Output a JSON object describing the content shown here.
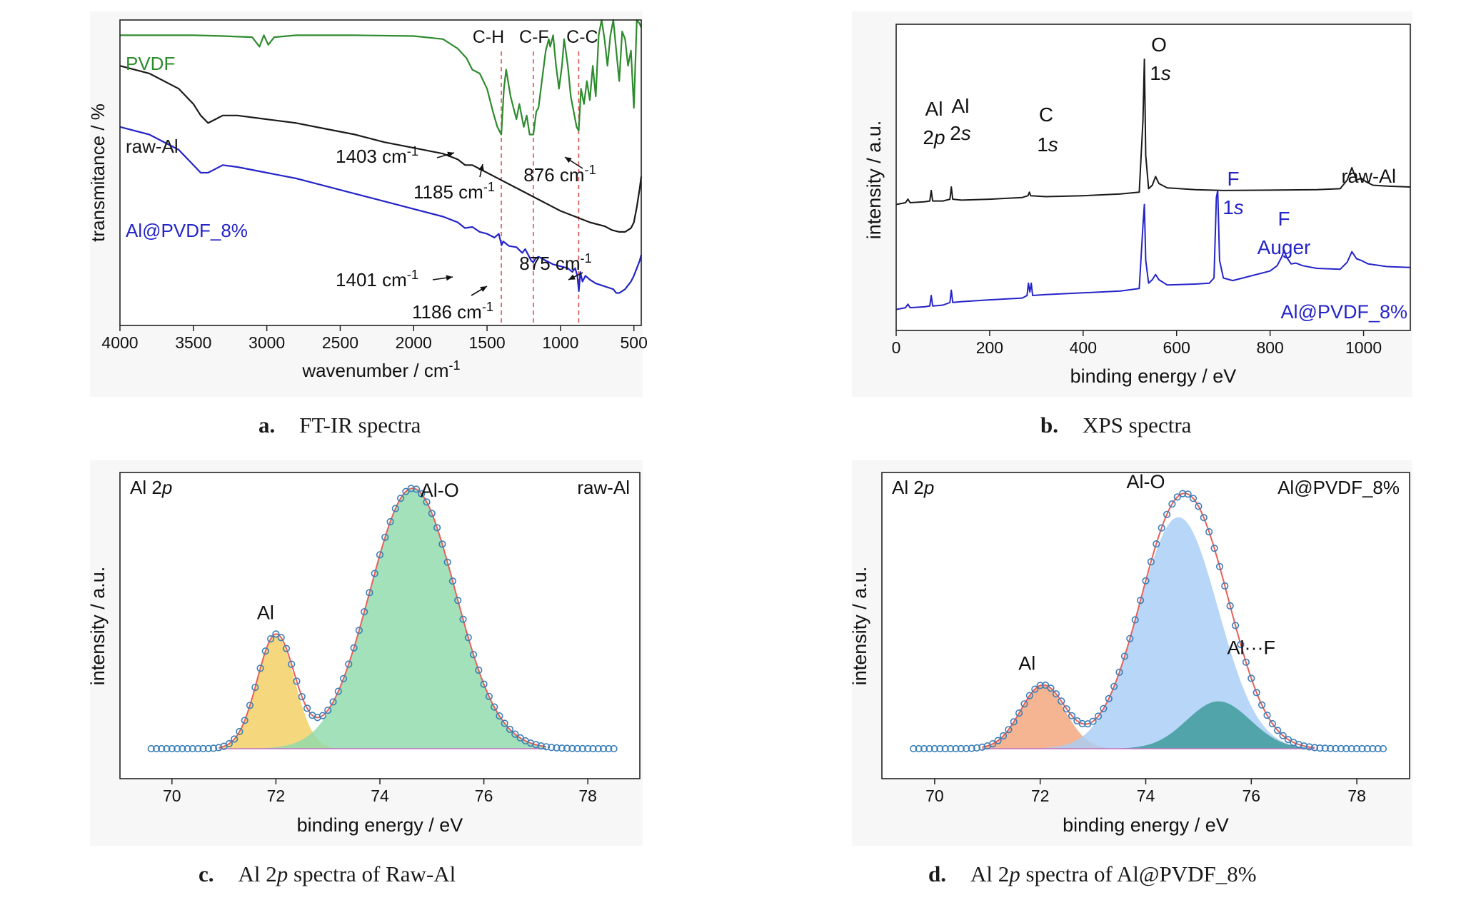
{
  "chart_data": [
    {
      "id": "a",
      "type": "line",
      "caption": {
        "letter": "a.",
        "text": "FT-IR spectra"
      },
      "xlabel": "wavenumber / cm",
      "xlabel_sup": "-1",
      "ylabel": "transmitance / %",
      "xlim": [
        4000,
        450
      ],
      "x_reversed": true,
      "xticks": [
        4000,
        3500,
        3000,
        2500,
        2000,
        1500,
        1000,
        500
      ],
      "yticks": [],
      "series": [
        {
          "name": "PVDF",
          "color": "#2e8b2e",
          "x": [
            4000,
            3700,
            3500,
            3300,
            3100,
            3050,
            3020,
            2990,
            2950,
            2800,
            2400,
            2000,
            1800,
            1700,
            1640,
            1600,
            1550,
            1500,
            1460,
            1430,
            1403,
            1385,
            1370,
            1340,
            1300,
            1280,
            1250,
            1230,
            1210,
            1185,
            1165,
            1150,
            1120,
            1100,
            1080,
            1070,
            1050,
            1030,
            1010,
            990,
            975,
            950,
            930,
            910,
            890,
            876,
            860,
            840,
            820,
            800,
            780,
            760,
            740,
            720,
            700,
            680,
            660,
            640,
            620,
            600,
            580,
            560,
            540,
            520,
            500,
            480,
            460,
            450
          ],
          "y": [
            96,
            96,
            96,
            95.8,
            95.5,
            93,
            96,
            93.5,
            95.5,
            96,
            96,
            95.8,
            95,
            92.5,
            90,
            87,
            86,
            82,
            76,
            72,
            70,
            82,
            87,
            80,
            74,
            78,
            72,
            75,
            70,
            70,
            76,
            77,
            86,
            92,
            95,
            93,
            96,
            88,
            82,
            88,
            95,
            88,
            80,
            76,
            72,
            71,
            82,
            78,
            84,
            79,
            88,
            80,
            96,
            100,
            95,
            88,
            96,
            100,
            92,
            84,
            97,
            95,
            88,
            92,
            77,
            100,
            99,
            98
          ]
        },
        {
          "name": "raw-Al",
          "color": "#1a1a1a",
          "x": [
            4000,
            3800,
            3600,
            3500,
            3450,
            3400,
            3350,
            3300,
            3200,
            3000,
            2800,
            2600,
            2400,
            2200,
            2000,
            1800,
            1700,
            1650,
            1600,
            1500,
            1400,
            1300,
            1200,
            1100,
            1000,
            900,
            800,
            700,
            650,
            600,
            560,
            520,
            500,
            480,
            460,
            450
          ],
          "y": [
            88,
            86,
            82,
            78,
            75,
            73,
            74,
            75,
            75,
            74,
            73,
            71.5,
            70,
            68,
            66.5,
            65,
            63.5,
            62,
            62,
            60,
            58,
            56,
            54,
            52,
            50,
            48.5,
            47,
            46,
            45,
            44.5,
            44.5,
            45.5,
            47,
            51,
            56,
            59
          ]
        },
        {
          "name": "Al@PVDF_8%",
          "color": "#2424c8",
          "x": [
            4000,
            3800,
            3600,
            3500,
            3450,
            3400,
            3350,
            3300,
            3200,
            3000,
            2800,
            2600,
            2400,
            2200,
            2000,
            1800,
            1700,
            1650,
            1600,
            1550,
            1500,
            1450,
            1420,
            1401,
            1390,
            1350,
            1300,
            1260,
            1240,
            1220,
            1200,
            1186,
            1170,
            1150,
            1100,
            1050,
            1000,
            950,
            920,
            900,
            885,
            875,
            865,
            850,
            830,
            800,
            760,
            720,
            680,
            640,
            620,
            600,
            580,
            560,
            540,
            520,
            500,
            480,
            460,
            450
          ],
          "y": [
            72,
            70,
            66,
            62,
            60,
            60,
            61,
            62,
            61.5,
            60,
            58.5,
            56.5,
            54.5,
            52.5,
            50.5,
            48.5,
            47,
            45.5,
            45.8,
            44.5,
            44,
            43,
            44,
            41,
            42,
            40.8,
            40.5,
            39,
            40,
            38.5,
            37,
            36.5,
            37.5,
            38,
            37,
            36,
            35.5,
            35,
            34,
            35,
            33,
            29,
            34,
            31.5,
            33,
            32,
            31,
            30.5,
            30,
            29.5,
            28.5,
            28.5,
            29,
            29.5,
            30.5,
            31.5,
            33,
            35,
            37,
            38.5
          ]
        }
      ],
      "series_labels": [
        {
          "text": "PVDF"
        },
        {
          "text": "raw-Al"
        },
        {
          "text": "Al@PVDF_8%"
        }
      ],
      "reference_lines": [
        {
          "x": 1403,
          "label": "C-H"
        },
        {
          "x": 1185,
          "label": "C-F"
        },
        {
          "x": 876,
          "label": "C-C"
        }
      ],
      "annotations": [
        {
          "text": "1403 cm",
          "sup": "-1"
        },
        {
          "text": "1185 cm",
          "sup": "-1"
        },
        {
          "text": "876 cm",
          "sup": "-1"
        },
        {
          "text": "1401 cm",
          "sup": "-1"
        },
        {
          "text": "1186 cm",
          "sup": "-1"
        },
        {
          "text": "875 cm",
          "sup": "-1"
        }
      ]
    },
    {
      "id": "b",
      "type": "line",
      "caption": {
        "letter": "b.",
        "text": "XPS spectra"
      },
      "xlabel": "binding energy / eV",
      "ylabel": "intensity / a.u.",
      "xlim": [
        0,
        1100
      ],
      "xticks": [
        0,
        200,
        400,
        600,
        800,
        1000
      ],
      "series": [
        {
          "name": "raw-Al",
          "color": "#1a1a1a",
          "x": [
            0,
            20,
            25,
            30,
            60,
            72,
            75,
            78,
            100,
            115,
            118,
            121,
            140,
            200,
            270,
            282,
            285,
            288,
            320,
            400,
            480,
            520,
            528,
            531,
            534,
            540,
            548,
            555,
            562,
            580,
            640,
            700,
            800,
            900,
            950,
            965,
            975,
            985,
            995,
            1005,
            1020,
            1050,
            1100
          ],
          "y": [
            12,
            13,
            15,
            13,
            13.5,
            14,
            20,
            14,
            14,
            15,
            22,
            15,
            14.5,
            15,
            16,
            17,
            19,
            17,
            16.5,
            17,
            18,
            19,
            60,
            95,
            40,
            21,
            23,
            28,
            24,
            21.5,
            20.5,
            20,
            20.2,
            20.5,
            21,
            26,
            33,
            26,
            27,
            25,
            23,
            22.5,
            22
          ]
        },
        {
          "name": "Al@PVDF_8%",
          "color": "#2424c8",
          "x": [
            0,
            20,
            25,
            30,
            60,
            72,
            75,
            78,
            100,
            115,
            118,
            121,
            140,
            200,
            270,
            280,
            283,
            286,
            289,
            292,
            320,
            400,
            480,
            520,
            528,
            531,
            534,
            540,
            548,
            555,
            562,
            580,
            640,
            670,
            680,
            685,
            688,
            692,
            700,
            720,
            800,
            815,
            825,
            830,
            835,
            845,
            855,
            870,
            900,
            950,
            965,
            975,
            985,
            995,
            1010,
            1050,
            1100
          ],
          "y": [
            -48,
            -47,
            -45,
            -47,
            -46.5,
            -46,
            -40,
            -46,
            -45.5,
            -44,
            -37,
            -44,
            -43.5,
            -42.5,
            -41.5,
            -40,
            -33,
            -38,
            -33,
            -40,
            -39.5,
            -38.5,
            -37.5,
            -36,
            0,
            12,
            -20,
            -33,
            -31,
            -28,
            -31,
            -34,
            -33.5,
            -33,
            -30,
            16,
            20,
            -20,
            -30,
            -31.5,
            -26,
            -23,
            -18,
            -14,
            -18,
            -22,
            -21.5,
            -23,
            -24.5,
            -25,
            -21,
            -15,
            -19,
            -20,
            -22,
            -23.5,
            -24
          ]
        }
      ],
      "labels": [
        {
          "text": "Al"
        },
        {
          "text": "2"
        },
        {
          "text": "p"
        },
        {
          "text": "Al"
        },
        {
          "text": "2"
        },
        {
          "text": "s"
        },
        {
          "text": "C"
        },
        {
          "text": "1"
        },
        {
          "text": "s"
        },
        {
          "text": "O"
        },
        {
          "text": "1"
        },
        {
          "text": "s"
        },
        {
          "text": "F"
        },
        {
          "text": "1"
        },
        {
          "text": "s"
        },
        {
          "text": "F"
        },
        {
          "text": "Auger"
        },
        {
          "text": "raw-Al"
        },
        {
          "text": "Al@PVDF_8%"
        }
      ]
    },
    {
      "id": "c",
      "type": "area",
      "caption": {
        "letter": "c.",
        "text_before": "Al 2",
        "text_italic": "p",
        "text_after": " spectra of Raw-Al"
      },
      "xlabel": "binding energy / eV",
      "ylabel": "intensity / a.u.",
      "xlim": [
        69,
        79
      ],
      "xticks": [
        70,
        72,
        74,
        76,
        78
      ],
      "corner_left": {
        "a": "Al 2",
        "b": "p"
      },
      "corner_right": "raw-Al",
      "baseline": 0,
      "components": [
        {
          "name": "Al",
          "center": 72.0,
          "amplitude": 0.43,
          "sigma": 0.36,
          "color": "#f3cf60"
        },
        {
          "name": "Al-O",
          "center": 74.63,
          "amplitude": 0.99,
          "sigma": 0.82,
          "color": "#8fdaab"
        }
      ],
      "envelope_color": "#e8605a",
      "marker_color": "#3b7fb8",
      "point_range": [
        69.6,
        78.5
      ],
      "point_step": 0.1,
      "peak_labels": [
        {
          "text": "Al"
        },
        {
          "text": "Al-O"
        }
      ]
    },
    {
      "id": "d",
      "type": "area",
      "caption": {
        "letter": "d.",
        "text_before": "Al 2",
        "text_italic": "p",
        "text_after": " spectra of Al@PVDF_8%"
      },
      "xlabel": "binding energy / eV",
      "ylabel": "intensity / a.u.",
      "xlim": [
        69,
        79
      ],
      "xticks": [
        70,
        72,
        74,
        76,
        78
      ],
      "corner_left": {
        "a": "Al 2",
        "b": "p"
      },
      "corner_right": "Al@PVDF_8%",
      "baseline": 0,
      "components": [
        {
          "name": "Al",
          "center": 72.05,
          "amplitude": 0.24,
          "sigma": 0.42,
          "color": "#f4a57a"
        },
        {
          "name": "Al-O",
          "center": 74.62,
          "amplitude": 0.88,
          "sigma": 0.75,
          "color": "#a8cdf5"
        },
        {
          "name": "Al···F",
          "center": 75.38,
          "amplitude": 0.18,
          "sigma": 0.6,
          "color": "#3a9898"
        }
      ],
      "envelope_color": "#e8605a",
      "marker_color": "#3b7fb8",
      "point_range": [
        69.6,
        78.5
      ],
      "point_step": 0.1,
      "peak_labels": [
        {
          "text": "Al"
        },
        {
          "text": "Al-O"
        },
        {
          "text": "Al···F"
        }
      ]
    }
  ]
}
